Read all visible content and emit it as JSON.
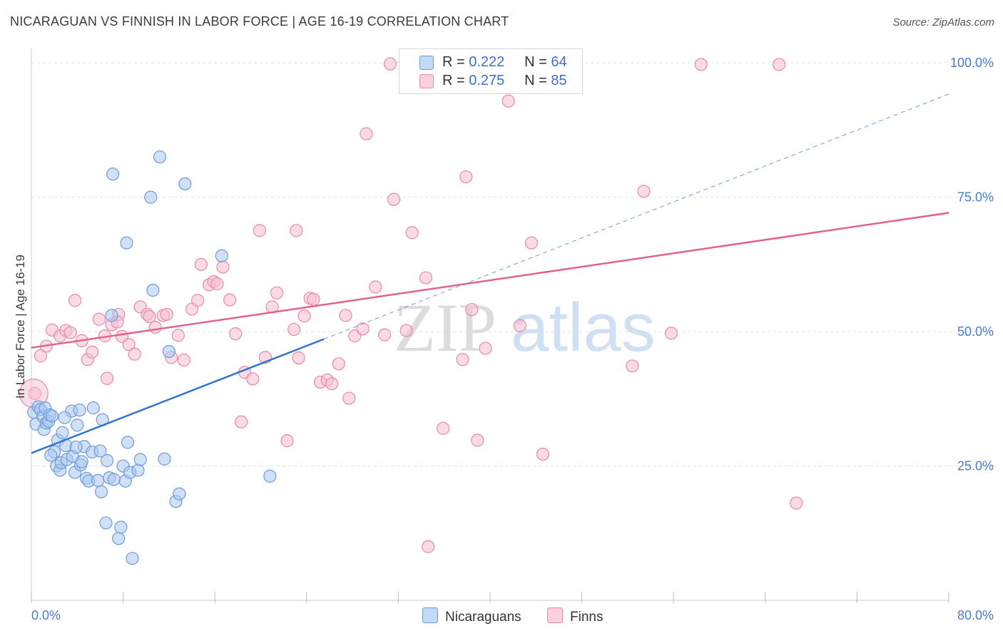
{
  "title": "NICARAGUAN VS FINNISH IN LABOR FORCE | AGE 16-19 CORRELATION CHART",
  "source": "Source: ZipAtlas.com",
  "watermark": {
    "zip": "ZIP",
    "atlas": "atlas"
  },
  "legend": {
    "rows": [
      {
        "r_label": "R = ",
        "r_value": "0.222",
        "n_label": "N = ",
        "n_value": "64"
      },
      {
        "r_label": "R = ",
        "r_value": "0.275",
        "n_label": "N = ",
        "n_value": "85"
      }
    ],
    "bottom": [
      "Nicaraguans",
      "Finns"
    ]
  },
  "colors": {
    "blue_fill": "#a9c8f0",
    "blue_stroke": "#6f9ad8",
    "blue_line": "#2f72d0",
    "pink_fill": "#f6bed0",
    "pink_stroke": "#e58aa8",
    "pink_line": "#e0628e",
    "grid": "#e3e3e3",
    "axis_text": "#4a7bd0"
  },
  "chart_data": {
    "type": "scatter",
    "title": "NICARAGUAN VS FINNISH IN LABOR FORCE | AGE 16-19 CORRELATION CHART",
    "xlabel": "",
    "ylabel": "In Labor Force | Age 16-19",
    "xlim": [
      0,
      80
    ],
    "ylim": [
      0,
      104
    ],
    "x_tick_labels": [
      "0.0%",
      "80.0%"
    ],
    "y_ticks": [
      25,
      50,
      75,
      100
    ],
    "y_tick_labels": [
      "25.0%",
      "50.0%",
      "75.0%",
      "100.0%"
    ],
    "series": [
      {
        "name": "Nicaraguans",
        "R": 0.222,
        "N": 64,
        "trend": {
          "x": [
            0,
            25.5
          ],
          "y": [
            27.4,
            48.6
          ]
        },
        "trend_dashed": {
          "x": [
            25.5,
            80
          ],
          "y": [
            48.6,
            94.2
          ]
        },
        "points": [
          [
            0.2,
            35
          ],
          [
            0.4,
            32.8
          ],
          [
            0.6,
            36
          ],
          [
            0.8,
            35.5
          ],
          [
            1.0,
            34.2
          ],
          [
            1.1,
            31.8
          ],
          [
            1.2,
            35.8
          ],
          [
            1.3,
            33
          ],
          [
            1.5,
            33.3
          ],
          [
            1.6,
            34.5
          ],
          [
            1.8,
            34.3
          ],
          [
            2.0,
            27.6
          ],
          [
            2.2,
            25
          ],
          [
            2.3,
            29.8
          ],
          [
            2.5,
            24.2
          ],
          [
            2.6,
            25.6
          ],
          [
            2.7,
            31.2
          ],
          [
            3.0,
            28.8
          ],
          [
            3.1,
            26.2
          ],
          [
            3.5,
            35.2
          ],
          [
            3.6,
            26.8
          ],
          [
            3.8,
            23.8
          ],
          [
            4.0,
            32.6
          ],
          [
            4.2,
            35.4
          ],
          [
            4.3,
            25.2
          ],
          [
            4.4,
            25.8
          ],
          [
            4.6,
            28.6
          ],
          [
            4.8,
            22.7
          ],
          [
            5.0,
            22.2
          ],
          [
            5.3,
            27.6
          ],
          [
            5.4,
            35.8
          ],
          [
            5.8,
            22.3
          ],
          [
            6.0,
            27.8
          ],
          [
            6.1,
            20.2
          ],
          [
            6.2,
            33.6
          ],
          [
            6.5,
            14.4
          ],
          [
            6.6,
            26
          ],
          [
            6.8,
            22.8
          ],
          [
            7.0,
            53
          ],
          [
            7.2,
            22.5
          ],
          [
            7.1,
            79.3
          ],
          [
            7.6,
            11.5
          ],
          [
            7.8,
            13.6
          ],
          [
            8.0,
            25
          ],
          [
            8.2,
            22.2
          ],
          [
            8.4,
            29.4
          ],
          [
            8.6,
            23.8
          ],
          [
            8.8,
            7.8
          ],
          [
            9.3,
            24.2
          ],
          [
            9.5,
            26.2
          ],
          [
            10.4,
            75
          ],
          [
            10.6,
            57.7
          ],
          [
            11.2,
            82.5
          ],
          [
            11.6,
            26.3
          ],
          [
            12.0,
            46.3
          ],
          [
            12.6,
            18.4
          ],
          [
            12.9,
            19.8
          ],
          [
            13.4,
            77.5
          ],
          [
            16.6,
            64.1
          ],
          [
            20.8,
            23.1
          ],
          [
            3.9,
            28.5
          ],
          [
            2.9,
            34
          ],
          [
            1.7,
            27
          ],
          [
            8.3,
            66.5
          ]
        ]
      },
      {
        "name": "Finns",
        "R": 0.275,
        "N": 85,
        "trend": {
          "x": [
            0,
            80
          ],
          "y": [
            47,
            72.1
          ]
        },
        "points": [
          [
            0.3,
            38.5
          ],
          [
            0.8,
            45.5
          ],
          [
            1.3,
            47.3
          ],
          [
            1.8,
            50.3
          ],
          [
            2.5,
            49.2
          ],
          [
            3.0,
            50.2
          ],
          [
            3.4,
            49.8
          ],
          [
            3.8,
            55.8
          ],
          [
            4.4,
            48.3
          ],
          [
            4.9,
            44.8
          ],
          [
            5.3,
            46.2
          ],
          [
            5.9,
            52.3
          ],
          [
            6.4,
            49.2
          ],
          [
            6.6,
            41.3
          ],
          [
            7.0,
            51.3
          ],
          [
            7.6,
            53.2
          ],
          [
            7.9,
            49.1
          ],
          [
            8.5,
            47.6
          ],
          [
            9.0,
            45.8
          ],
          [
            9.5,
            54.6
          ],
          [
            10.1,
            53.2
          ],
          [
            10.8,
            50.8
          ],
          [
            11.5,
            53
          ],
          [
            11.8,
            53.2
          ],
          [
            12.2,
            45.2
          ],
          [
            12.8,
            49.3
          ],
          [
            13.3,
            44.7
          ],
          [
            14.0,
            54.2
          ],
          [
            14.5,
            55.8
          ],
          [
            14.8,
            62.5
          ],
          [
            15.5,
            58.7
          ],
          [
            15.9,
            59.3
          ],
          [
            16.7,
            62
          ],
          [
            17.3,
            55.9
          ],
          [
            17.8,
            49.6
          ],
          [
            18.3,
            33.2
          ],
          [
            18.6,
            42.4
          ],
          [
            19.3,
            41.2
          ],
          [
            19.9,
            68.8
          ],
          [
            20.4,
            45.2
          ],
          [
            21.0,
            54.6
          ],
          [
            21.4,
            57.2
          ],
          [
            22.3,
            29.7
          ],
          [
            22.9,
            50.4
          ],
          [
            23.1,
            68.8
          ],
          [
            23.8,
            52.9
          ],
          [
            24.3,
            56.2
          ],
          [
            24.6,
            56
          ],
          [
            25.2,
            40.6
          ],
          [
            25.8,
            41
          ],
          [
            26.2,
            40.3
          ],
          [
            26.8,
            44
          ],
          [
            27.4,
            53
          ],
          [
            27.7,
            37.6
          ],
          [
            28.2,
            49.2
          ],
          [
            28.9,
            50.5
          ],
          [
            29.2,
            86.8
          ],
          [
            30.0,
            58.3
          ],
          [
            30.8,
            49.4
          ],
          [
            31.3,
            99.8
          ],
          [
            31.6,
            74.6
          ],
          [
            32.7,
            50.2
          ],
          [
            33.2,
            68.4
          ],
          [
            34.4,
            60
          ],
          [
            34.6,
            10
          ],
          [
            35.9,
            32
          ],
          [
            37.6,
            44.8
          ],
          [
            37.9,
            78.8
          ],
          [
            38.4,
            54.1
          ],
          [
            38.9,
            29.8
          ],
          [
            39.6,
            46.9
          ],
          [
            41.6,
            92.9
          ],
          [
            42.6,
            51.1
          ],
          [
            43.6,
            66.5
          ],
          [
            44.6,
            27.2
          ],
          [
            52.4,
            43.6
          ],
          [
            53.4,
            76.1
          ],
          [
            55.8,
            49.7
          ],
          [
            58.4,
            99.7
          ],
          [
            65.2,
            99.7
          ],
          [
            66.7,
            18.1
          ],
          [
            7.5,
            51.8
          ],
          [
            16.2,
            58.9
          ],
          [
            23.3,
            45.1
          ],
          [
            10.3,
            52.8
          ]
        ]
      }
    ]
  }
}
